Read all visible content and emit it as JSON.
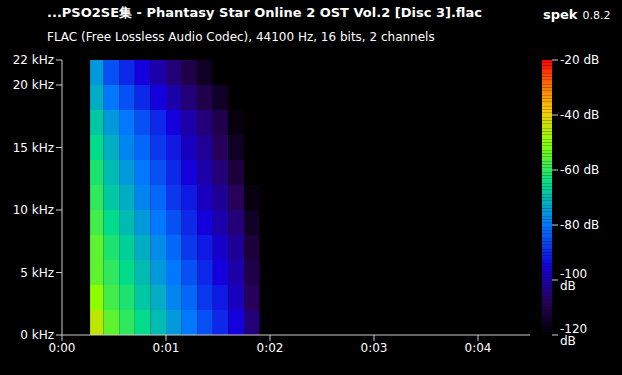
{
  "chart_data": {
    "type": "heatmap",
    "title": "...PSO2SE集 - Phantasy Star Online 2 OST Vol.2 [Disc 3].flac",
    "subtitle": "FLAC (Free Lossless Audio Codec), 44100 Hz, 16 bits, 2 channels",
    "annotations": [
      "spek",
      "0.8.2"
    ],
    "xlim": [
      0,
      4.5
    ],
    "xticks": [
      {
        "value": 0,
        "label": "0:00"
      },
      {
        "value": 1,
        "label": "0:01"
      },
      {
        "value": 2,
        "label": "0:02"
      },
      {
        "value": 3,
        "label": "0:03"
      },
      {
        "value": 4,
        "label": "0:04"
      }
    ],
    "ylim": [
      0,
      22
    ],
    "yticks": [
      {
        "value": 0,
        "label": "0 kHz"
      },
      {
        "value": 5,
        "label": "5 kHz"
      },
      {
        "value": 10,
        "label": "10 kHz"
      },
      {
        "value": 15,
        "label": "15 kHz"
      },
      {
        "value": 20,
        "label": "20 kHz"
      },
      {
        "value": 22,
        "label": "22 kHz"
      }
    ],
    "x_bins": [
      0.27,
      0.4,
      0.55,
      0.7,
      0.85,
      1.0,
      1.15,
      1.3,
      1.45,
      1.6,
      1.75,
      1.9
    ],
    "y_bins": [
      0,
      2,
      4,
      6,
      8,
      10,
      12,
      14,
      16,
      18,
      20,
      22
    ],
    "cells": [
      [
        -45,
        -55,
        -60,
        -65,
        -70,
        -75,
        -80,
        -85,
        -90,
        -95,
        -105
      ],
      [
        -50,
        -58,
        -62,
        -68,
        -72,
        -78,
        -82,
        -88,
        -92,
        -98,
        -108
      ],
      [
        -55,
        -60,
        -65,
        -70,
        -75,
        -80,
        -85,
        -90,
        -95,
        -100,
        -110
      ],
      [
        -55,
        -62,
        -67,
        -72,
        -77,
        -82,
        -88,
        -92,
        -97,
        -102,
        -112
      ],
      [
        -58,
        -65,
        -70,
        -75,
        -80,
        -85,
        -90,
        -95,
        -100,
        -105,
        -115
      ],
      [
        -60,
        -68,
        -72,
        -78,
        -82,
        -88,
        -92,
        -98,
        -102,
        -108,
        -118
      ],
      [
        -62,
        -70,
        -75,
        -80,
        -85,
        -90,
        -95,
        -100,
        -105,
        -112,
        -120
      ],
      [
        -65,
        -72,
        -78,
        -82,
        -88,
        -92,
        -98,
        -102,
        -108,
        -115,
        -120
      ],
      [
        -68,
        -75,
        -80,
        -85,
        -90,
        -95,
        -100,
        -105,
        -110,
        -118,
        -120
      ],
      [
        -72,
        -80,
        -85,
        -90,
        -95,
        -100,
        -105,
        -110,
        -115,
        -120,
        -120
      ],
      [
        -75,
        -85,
        -90,
        -95,
        -100,
        -105,
        -110,
        -115,
        -120,
        -120,
        -120
      ]
    ],
    "colorbar": {
      "range": [
        -120,
        -20
      ],
      "ticks": [
        {
          "value": -20,
          "label": "-20 dB"
        },
        {
          "value": -40,
          "label": "-40 dB"
        },
        {
          "value": -60,
          "label": "-60 dB"
        },
        {
          "value": -80,
          "label": "-80 dB"
        },
        {
          "value": -100,
          "label": "-100 dB"
        },
        {
          "value": -120,
          "label": "-120 dB"
        }
      ]
    }
  }
}
